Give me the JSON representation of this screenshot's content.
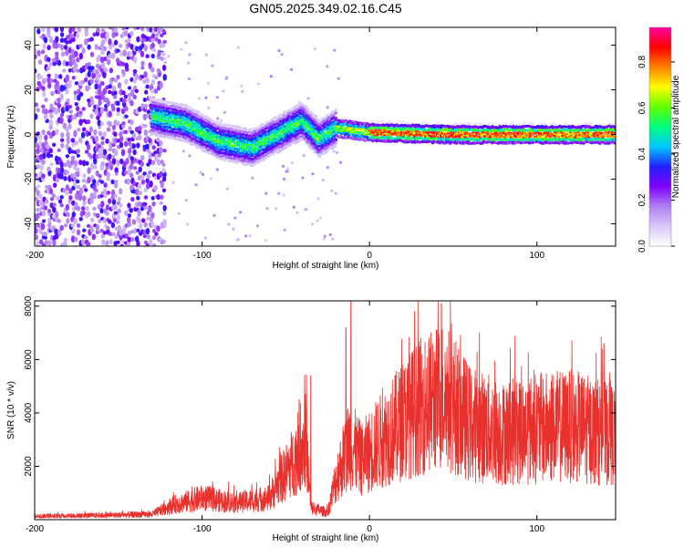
{
  "title": "GN05.2025.349.02.16.C45",
  "chart_data": [
    {
      "type": "heatmap",
      "xlabel": "Height of straight line (km)",
      "ylabel": "Frequency (Hz)",
      "xlim": [
        -200,
        147
      ],
      "ylim": [
        -50,
        48
      ],
      "xticks": [
        -200,
        -100,
        0,
        100
      ],
      "yticks": [
        -40,
        -20,
        0,
        20,
        40
      ],
      "colorbar": {
        "label": "Normalized spectral amplitude",
        "range": [
          0,
          0.95
        ],
        "ticks": [
          0.0,
          0.2,
          0.4,
          0.6,
          0.8
        ],
        "colors": [
          "#ffffff",
          "#d8c8f8",
          "#b080f0",
          "#8000ff",
          "#2020ff",
          "#00c8ff",
          "#00ff80",
          "#60ff00",
          "#ffff00",
          "#ff8000",
          "#ff0000",
          "#ff00a0"
        ]
      },
      "ridge": [
        {
          "x": -130,
          "y": 8
        },
        {
          "x": -110,
          "y": 5
        },
        {
          "x": -90,
          "y": -3
        },
        {
          "x": -70,
          "y": -6
        },
        {
          "x": -55,
          "y": 0
        },
        {
          "x": -40,
          "y": 6
        },
        {
          "x": -30,
          "y": -2
        },
        {
          "x": -20,
          "y": 3
        },
        {
          "x": -10,
          "y": 2
        },
        {
          "x": 0,
          "y": 1
        },
        {
          "x": 50,
          "y": 0
        },
        {
          "x": 100,
          "y": 0
        },
        {
          "x": 147,
          "y": 0
        }
      ]
    },
    {
      "type": "line",
      "xlabel": "Height of straight line (km)",
      "ylabel": "SNR (10 * v/v)",
      "xlim": [
        -200,
        147
      ],
      "ylim": [
        0,
        8200
      ],
      "xticks": [
        -200,
        -100,
        0,
        100
      ],
      "yticks": [
        2000,
        4000,
        6000,
        8000
      ],
      "series": [
        {
          "name": "SNR",
          "color": "#e8302c",
          "envelope": [
            {
              "x": -200,
              "y": 150
            },
            {
              "x": -160,
              "y": 180
            },
            {
              "x": -130,
              "y": 220
            },
            {
              "x": -118,
              "y": 600
            },
            {
              "x": -100,
              "y": 900
            },
            {
              "x": -80,
              "y": 700
            },
            {
              "x": -60,
              "y": 900
            },
            {
              "x": -45,
              "y": 2500
            },
            {
              "x": -38,
              "y": 3300
            },
            {
              "x": -35,
              "y": 500
            },
            {
              "x": -25,
              "y": 300
            },
            {
              "x": -20,
              "y": 1700
            },
            {
              "x": -12,
              "y": 3200
            },
            {
              "x": -5,
              "y": 2500
            },
            {
              "x": 10,
              "y": 3500
            },
            {
              "x": 30,
              "y": 4700
            },
            {
              "x": 45,
              "y": 5200
            },
            {
              "x": 60,
              "y": 4000
            },
            {
              "x": 80,
              "y": 3600
            },
            {
              "x": 100,
              "y": 3800
            },
            {
              "x": 120,
              "y": 3900
            },
            {
              "x": 147,
              "y": 3500
            }
          ],
          "spikes": [
            {
              "x": -42,
              "y": 4500
            },
            {
              "x": -35,
              "y": 5400
            },
            {
              "x": -14,
              "y": 7200
            },
            {
              "x": -11,
              "y": 8200
            },
            {
              "x": 27,
              "y": 7800
            },
            {
              "x": 43,
              "y": 8100
            },
            {
              "x": 140,
              "y": 6600
            }
          ]
        }
      ]
    }
  ]
}
